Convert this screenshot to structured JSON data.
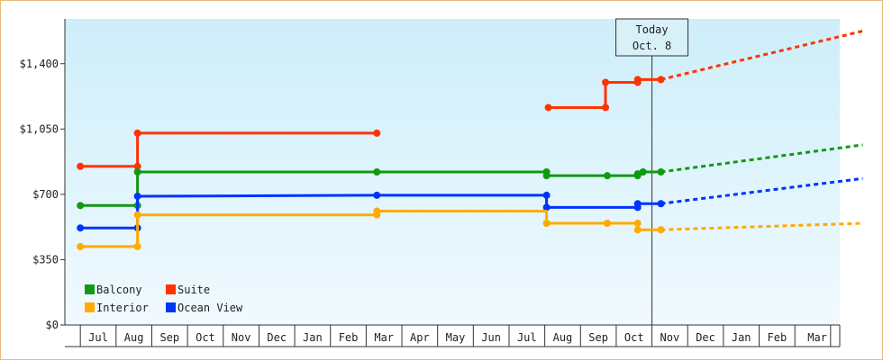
{
  "chart_data": {
    "type": "line",
    "step": true,
    "x_axis": {
      "categories": [
        "Jul",
        "Aug",
        "Sep",
        "Oct",
        "Nov",
        "Dec",
        "Jan",
        "Feb",
        "Mar",
        "Apr",
        "May",
        "Jun",
        "Jul",
        "Aug",
        "Sep",
        "Oct",
        "Nov",
        "Dec",
        "Jan",
        "Feb",
        "Mar"
      ]
    },
    "y_axis": {
      "ticks": [
        0,
        350,
        700,
        1050,
        1400
      ],
      "tick_labels": [
        "$0",
        "$350",
        "$700",
        "$1,050",
        "$1,400"
      ],
      "ylim": [
        0,
        1640
      ]
    },
    "grid": false,
    "background": "light-blue gradient",
    "today_marker": {
      "line1": "Today",
      "line2": "Oct. 8",
      "x": 15.5
    },
    "legend": {
      "placement": "bottom-left",
      "items": [
        {
          "label": "Balcony",
          "color": "#119911"
        },
        {
          "label": "Suite",
          "color": "#ff3300"
        },
        {
          "label": "Interior",
          "color": "#ffaa00"
        },
        {
          "label": "Ocean View",
          "color": "#0033ff"
        }
      ]
    },
    "series": [
      {
        "name": "Suite",
        "color": "#ff3300",
        "segments": [
          [
            [
              -0.5,
              850
            ],
            [
              1.1,
              850
            ],
            [
              1.1,
              1028
            ],
            [
              7.8,
              1028
            ]
          ],
          [
            [
              12.6,
              1165
            ],
            [
              14.2,
              1165
            ],
            [
              14.2,
              1300
            ],
            [
              15.1,
              1300
            ],
            [
              15.1,
              1315
            ],
            [
              15.75,
              1315
            ]
          ]
        ],
        "markers": [
          [
            -0.5,
            850
          ],
          [
            1.1,
            850
          ],
          [
            1.1,
            1028
          ],
          [
            7.8,
            1028
          ],
          [
            12.6,
            1165
          ],
          [
            14.2,
            1165
          ],
          [
            14.2,
            1300
          ],
          [
            15.1,
            1300
          ],
          [
            15.1,
            1315
          ],
          [
            15.75,
            1315
          ]
        ],
        "forecast": [
          [
            15.75,
            1315
          ],
          [
            21.4,
            1575
          ]
        ]
      },
      {
        "name": "Balcony",
        "color": "#119911",
        "segments": [
          [
            [
              -0.5,
              640
            ],
            [
              1.1,
              640
            ],
            [
              1.1,
              820
            ],
            [
              7.8,
              820
            ],
            [
              12.55,
              820
            ],
            [
              12.55,
              800
            ],
            [
              14.25,
              800
            ],
            [
              15.1,
              800
            ],
            [
              15.1,
              810
            ],
            [
              15.25,
              810
            ],
            [
              15.25,
              820
            ],
            [
              15.75,
              820
            ]
          ]
        ],
        "markers": [
          [
            -0.5,
            640
          ],
          [
            1.1,
            640
          ],
          [
            1.1,
            820
          ],
          [
            7.8,
            820
          ],
          [
            12.55,
            820
          ],
          [
            12.55,
            800
          ],
          [
            14.25,
            800
          ],
          [
            15.1,
            800
          ],
          [
            15.1,
            810
          ],
          [
            15.25,
            820
          ],
          [
            15.75,
            820
          ]
        ],
        "forecast": [
          [
            15.75,
            820
          ],
          [
            21.4,
            965
          ]
        ]
      },
      {
        "name": "Ocean View",
        "color": "#0033ff",
        "segments": [
          [
            [
              -0.5,
              520
            ],
            [
              1.1,
              520
            ],
            [
              1.1,
              690
            ],
            [
              7.8,
              695
            ],
            [
              12.55,
              695
            ],
            [
              12.55,
              630
            ],
            [
              15.1,
              630
            ],
            [
              15.1,
              650
            ],
            [
              15.75,
              650
            ]
          ]
        ],
        "markers": [
          [
            -0.5,
            520
          ],
          [
            1.1,
            520
          ],
          [
            1.1,
            690
          ],
          [
            7.8,
            695
          ],
          [
            12.55,
            695
          ],
          [
            12.55,
            630
          ],
          [
            15.1,
            630
          ],
          [
            15.1,
            650
          ],
          [
            15.75,
            650
          ]
        ],
        "forecast": [
          [
            15.75,
            650
          ],
          [
            21.4,
            785
          ]
        ]
      },
      {
        "name": "Interior",
        "color": "#ffaa00",
        "segments": [
          [
            [
              -0.5,
              420
            ],
            [
              1.1,
              420
            ],
            [
              1.1,
              590
            ],
            [
              7.8,
              590
            ],
            [
              7.8,
              610
            ],
            [
              12.55,
              610
            ],
            [
              12.55,
              545
            ],
            [
              14.25,
              545
            ],
            [
              15.1,
              545
            ],
            [
              15.1,
              510
            ],
            [
              15.75,
              510
            ]
          ]
        ],
        "markers": [
          [
            -0.5,
            420
          ],
          [
            1.1,
            420
          ],
          [
            1.1,
            590
          ],
          [
            7.8,
            590
          ],
          [
            7.8,
            610
          ],
          [
            12.55,
            545
          ],
          [
            14.25,
            545
          ],
          [
            15.1,
            545
          ],
          [
            15.1,
            510
          ],
          [
            15.75,
            510
          ]
        ],
        "forecast": [
          [
            15.75,
            510
          ],
          [
            21.4,
            545
          ]
        ]
      }
    ]
  }
}
